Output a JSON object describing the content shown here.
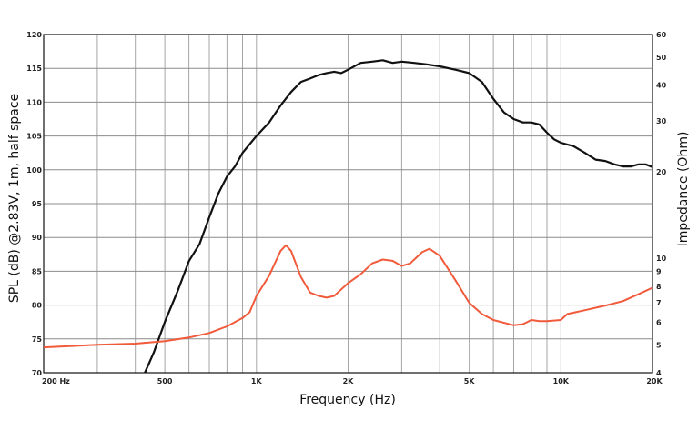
{
  "chart_data": {
    "type": "line",
    "xlabel": "Frequency (Hz)",
    "ylabel": "SPL (dB) @2.83V, 1m, half space",
    "y2label": "Impedance (Ohm)",
    "x_scale": "log",
    "xlim": [
      200,
      20000
    ],
    "ylim": [
      70,
      120
    ],
    "y2_scale": "log",
    "y2lim": [
      4,
      60
    ],
    "grid": true,
    "x_ticks": [
      {
        "value": 200,
        "label": "200  Hz"
      },
      {
        "value": 500,
        "label": "500"
      },
      {
        "value": 1000,
        "label": "1K"
      },
      {
        "value": 2000,
        "label": "2K"
      },
      {
        "value": 5000,
        "label": "5K"
      },
      {
        "value": 10000,
        "label": "10K"
      },
      {
        "value": 20000,
        "label": "20K"
      }
    ],
    "y_ticks": [
      70,
      75,
      80,
      85,
      90,
      95,
      100,
      105,
      110,
      115,
      120
    ],
    "y2_ticks": [
      4,
      5,
      6,
      7,
      8,
      9,
      10,
      20,
      30,
      40,
      50,
      60
    ],
    "series": [
      {
        "name": "SPL",
        "color": "#111111",
        "axis": "left",
        "points": [
          [
            430,
            70
          ],
          [
            460,
            73
          ],
          [
            500,
            77.5
          ],
          [
            550,
            82
          ],
          [
            600,
            86.5
          ],
          [
            650,
            89
          ],
          [
            700,
            93
          ],
          [
            750,
            96.5
          ],
          [
            800,
            99
          ],
          [
            850,
            100.5
          ],
          [
            900,
            102.5
          ],
          [
            1000,
            105
          ],
          [
            1100,
            107
          ],
          [
            1200,
            109.5
          ],
          [
            1300,
            111.5
          ],
          [
            1400,
            113
          ],
          [
            1500,
            113.5
          ],
          [
            1600,
            114
          ],
          [
            1700,
            114.3
          ],
          [
            1800,
            114.5
          ],
          [
            1900,
            114.3
          ],
          [
            2000,
            114.8
          ],
          [
            2200,
            115.8
          ],
          [
            2400,
            116
          ],
          [
            2600,
            116.2
          ],
          [
            2800,
            115.8
          ],
          [
            3000,
            116
          ],
          [
            3300,
            115.8
          ],
          [
            3600,
            115.6
          ],
          [
            4000,
            115.3
          ],
          [
            4500,
            114.8
          ],
          [
            5000,
            114.3
          ],
          [
            5500,
            113
          ],
          [
            6000,
            110.5
          ],
          [
            6500,
            108.5
          ],
          [
            7000,
            107.5
          ],
          [
            7500,
            107
          ],
          [
            8000,
            107
          ],
          [
            8500,
            106.7
          ],
          [
            9000,
            105.5
          ],
          [
            9500,
            104.5
          ],
          [
            10000,
            104
          ],
          [
            11000,
            103.5
          ],
          [
            12000,
            102.5
          ],
          [
            13000,
            101.5
          ],
          [
            14000,
            101.3
          ],
          [
            15000,
            100.8
          ],
          [
            16000,
            100.5
          ],
          [
            17000,
            100.5
          ],
          [
            18000,
            100.8
          ],
          [
            19000,
            100.8
          ],
          [
            20000,
            100.4
          ]
        ]
      },
      {
        "name": "Impedance",
        "color": "#f15a3a",
        "axis": "right",
        "points": [
          [
            200,
            4.9
          ],
          [
            300,
            5.0
          ],
          [
            400,
            5.05
          ],
          [
            500,
            5.15
          ],
          [
            600,
            5.3
          ],
          [
            700,
            5.5
          ],
          [
            800,
            5.8
          ],
          [
            900,
            6.2
          ],
          [
            950,
            6.5
          ],
          [
            1000,
            7.4
          ],
          [
            1100,
            8.7
          ],
          [
            1200,
            10.6
          ],
          [
            1250,
            11.1
          ],
          [
            1300,
            10.6
          ],
          [
            1400,
            8.6
          ],
          [
            1500,
            7.6
          ],
          [
            1600,
            7.4
          ],
          [
            1700,
            7.3
          ],
          [
            1800,
            7.4
          ],
          [
            1900,
            7.8
          ],
          [
            2000,
            8.2
          ],
          [
            2200,
            8.8
          ],
          [
            2400,
            9.6
          ],
          [
            2600,
            9.9
          ],
          [
            2800,
            9.8
          ],
          [
            3000,
            9.4
          ],
          [
            3200,
            9.6
          ],
          [
            3500,
            10.5
          ],
          [
            3700,
            10.8
          ],
          [
            4000,
            10.2
          ],
          [
            4500,
            8.4
          ],
          [
            5000,
            7.0
          ],
          [
            5500,
            6.4
          ],
          [
            6000,
            6.1
          ],
          [
            7000,
            5.85
          ],
          [
            7500,
            5.9
          ],
          [
            8000,
            6.1
          ],
          [
            8500,
            6.05
          ],
          [
            9000,
            6.05
          ],
          [
            10000,
            6.1
          ],
          [
            10500,
            6.4
          ],
          [
            12000,
            6.6
          ],
          [
            14000,
            6.85
          ],
          [
            16000,
            7.1
          ],
          [
            18000,
            7.5
          ],
          [
            20000,
            7.9
          ]
        ]
      }
    ]
  }
}
